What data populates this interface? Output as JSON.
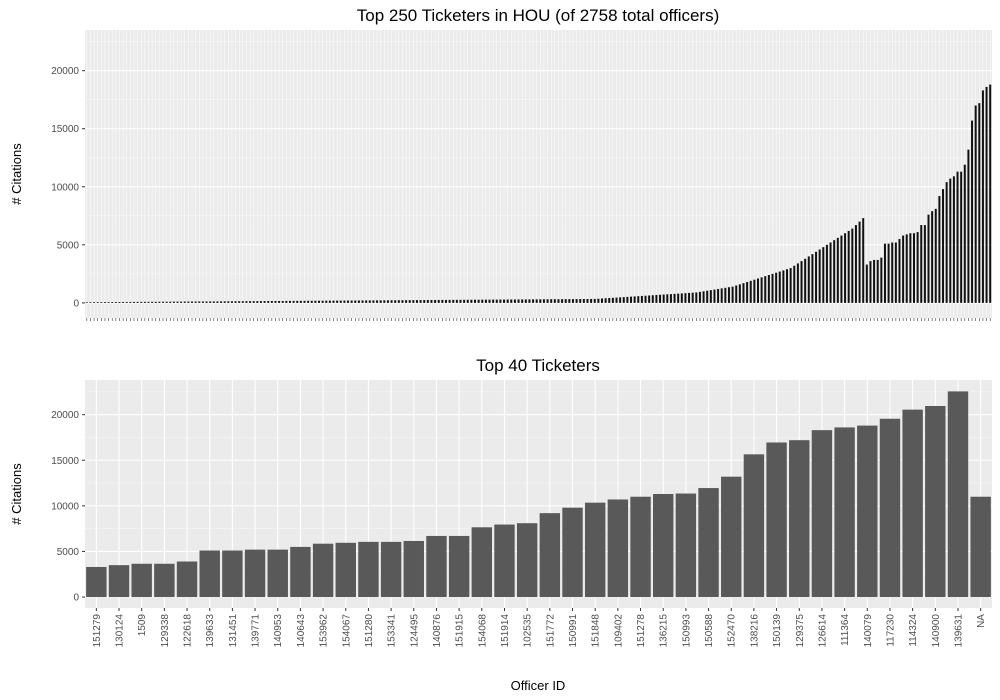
{
  "chart_data": [
    {
      "type": "bar",
      "title": "Top 250 Ticketers in HOU (of 2758 total officers)",
      "xlabel": "",
      "ylabel": "# Citations",
      "ylim": [
        -1300,
        23500
      ],
      "yticks": [
        0,
        5000,
        10000,
        15000,
        20000
      ],
      "grid": true,
      "n_categories": 250,
      "values": [
        60,
        62,
        64,
        66,
        68,
        70,
        72,
        74,
        76,
        78,
        80,
        82,
        84,
        86,
        88,
        90,
        92,
        94,
        96,
        98,
        100,
        102,
        104,
        106,
        108,
        110,
        112,
        114,
        116,
        118,
        120,
        122,
        124,
        126,
        128,
        130,
        132,
        134,
        136,
        138,
        140,
        142,
        144,
        146,
        148,
        150,
        152,
        154,
        156,
        158,
        160,
        162,
        164,
        166,
        168,
        170,
        172,
        174,
        176,
        178,
        180,
        182,
        184,
        186,
        188,
        190,
        192,
        194,
        196,
        198,
        200,
        202,
        204,
        206,
        208,
        210,
        212,
        214,
        216,
        218,
        220,
        222,
        224,
        226,
        228,
        230,
        232,
        234,
        236,
        238,
        240,
        242,
        244,
        246,
        248,
        250,
        252,
        254,
        256,
        258,
        260,
        262,
        264,
        266,
        268,
        270,
        272,
        274,
        276,
        278,
        280,
        282,
        284,
        286,
        288,
        290,
        292,
        294,
        296,
        298,
        300,
        302,
        304,
        306,
        308,
        310,
        312,
        314,
        316,
        318,
        320,
        322,
        324,
        326,
        328,
        330,
        332,
        334,
        336,
        338,
        340,
        360,
        380,
        400,
        420,
        440,
        460,
        480,
        500,
        520,
        540,
        560,
        580,
        600,
        620,
        640,
        660,
        680,
        700,
        720,
        740,
        760,
        780,
        800,
        820,
        840,
        860,
        880,
        900,
        950,
        1000,
        1050,
        1100,
        1150,
        1200,
        1250,
        1300,
        1350,
        1400,
        1500,
        1600,
        1700,
        1800,
        1900,
        2000,
        2100,
        2200,
        2300,
        2400,
        2500,
        2600,
        2700,
        2800,
        2900,
        3000,
        3200,
        3400,
        3600,
        3800,
        4000,
        4200,
        4400,
        4600,
        4800,
        5000,
        5200,
        5400,
        5600,
        5800,
        6000,
        6200,
        6400,
        6700,
        7000,
        7300,
        3300,
        3600,
        3700,
        3700,
        3900,
        5100,
        5100,
        5200,
        5200,
        5500,
        5800,
        5900,
        6000,
        6000,
        6100,
        6700,
        6700,
        7600,
        7900,
        8100,
        9200,
        9800,
        10400,
        10700,
        10900,
        11300,
        11300,
        11900,
        13200,
        15700,
        17000,
        17200,
        18300,
        18600,
        18800
      ]
    },
    {
      "type": "bar",
      "title": "Top 40 Ticketers",
      "xlabel": "Officer ID",
      "ylabel": "# Citations",
      "ylim": [
        -1200,
        23800
      ],
      "yticks": [
        0,
        5000,
        10000,
        15000,
        20000
      ],
      "grid": true,
      "categories": [
        "151279",
        "130124",
        "1509",
        "129338",
        "122618",
        "139633",
        "131451",
        "139771",
        "140953",
        "140643",
        "153962",
        "154067",
        "151280",
        "153341",
        "124495",
        "140876",
        "151915",
        "154068",
        "151914",
        "102535",
        "151772",
        "150991",
        "151848",
        "109402",
        "151278",
        "136215",
        "150993",
        "150588",
        "152470",
        "138216",
        "150139",
        "129375",
        "126614",
        "111364",
        "140079",
        "117230",
        "114324",
        "140900",
        "139631",
        "NA"
      ],
      "values": [
        3300,
        3500,
        3650,
        3650,
        3900,
        5100,
        5100,
        5200,
        5200,
        5500,
        5850,
        5950,
        6050,
        6050,
        6150,
        6700,
        6700,
        7650,
        7950,
        8100,
        9200,
        9800,
        10350,
        10700,
        11000,
        11300,
        11350,
        11950,
        13200,
        15650,
        16950,
        17200,
        18300,
        18600,
        18800,
        19550,
        20550,
        20950,
        22550,
        11000
      ]
    }
  ]
}
